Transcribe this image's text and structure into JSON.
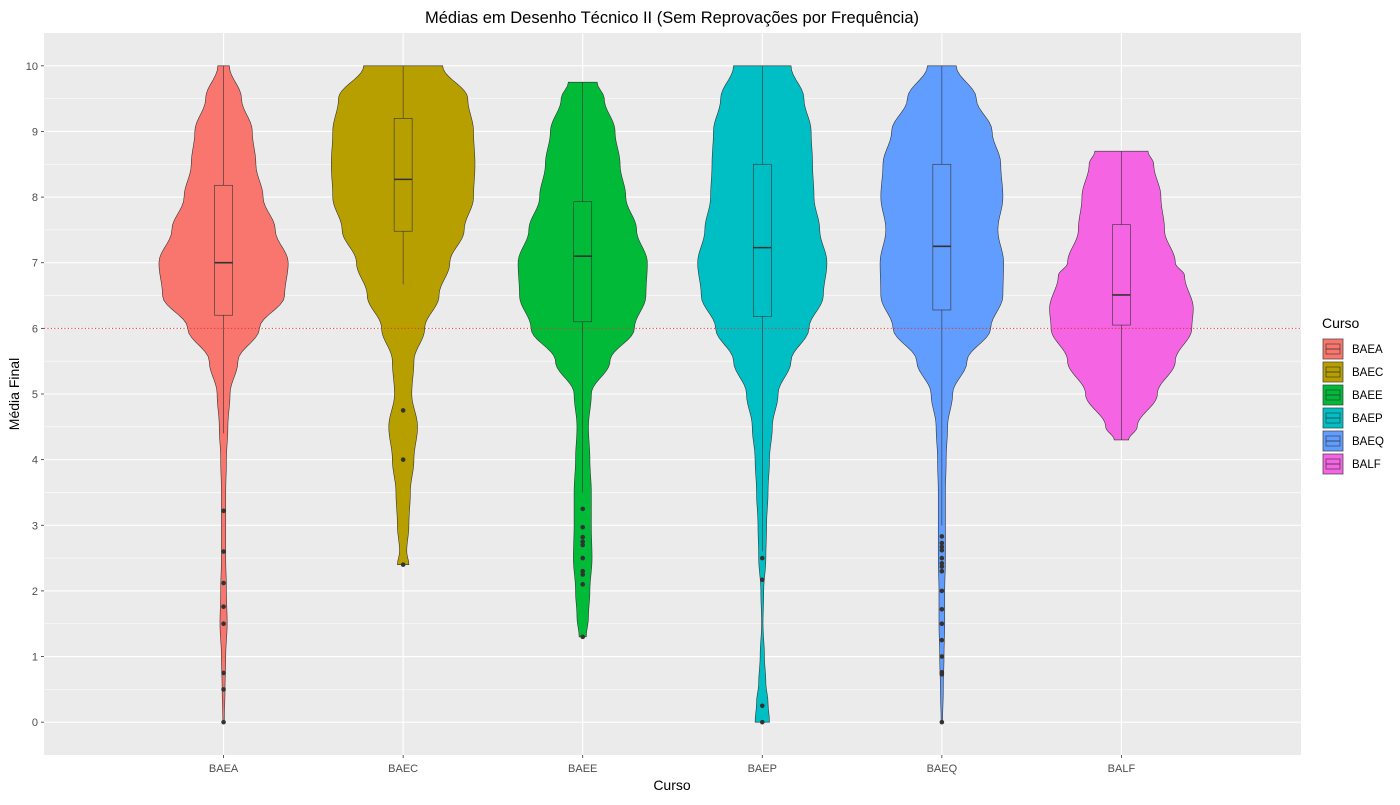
{
  "chart_data": {
    "type": "violin",
    "title": "Médias em Desenho Técnico II (Sem Reprovações por Frequência)",
    "xlabel": "Curso",
    "ylabel": "Média Final",
    "ylim": [
      -0.5,
      10.5
    ],
    "yticks": [
      "0",
      "1",
      "2",
      "3",
      "4",
      "5",
      "6",
      "7",
      "8",
      "9",
      "10"
    ],
    "grid": true,
    "reference_line": {
      "y": 6,
      "color": "#e8352a",
      "style": "dotted"
    },
    "categories": [
      "BAEA",
      "BAEC",
      "BAEE",
      "BAEP",
      "BAEQ",
      "BALF"
    ],
    "legend": {
      "title": "Curso",
      "position": "right"
    },
    "series": [
      {
        "name": "BAEA",
        "color": "#F8766D",
        "violin": {
          "min": 0,
          "max": 10,
          "profile": [
            [
              0,
              0.01
            ],
            [
              0.5,
              0.02
            ],
            [
              1,
              0.03
            ],
            [
              1.5,
              0.05
            ],
            [
              2,
              0.04
            ],
            [
              2.5,
              0.03
            ],
            [
              3,
              0.03
            ],
            [
              3.5,
              0.03
            ],
            [
              4,
              0.04
            ],
            [
              4.5,
              0.06
            ],
            [
              5,
              0.09
            ],
            [
              5.5,
              0.2
            ],
            [
              6,
              0.5
            ],
            [
              6.5,
              0.85
            ],
            [
              7,
              0.9
            ],
            [
              7.5,
              0.72
            ],
            [
              8,
              0.55
            ],
            [
              8.5,
              0.45
            ],
            [
              9,
              0.4
            ],
            [
              9.5,
              0.25
            ],
            [
              10,
              0.08
            ]
          ]
        },
        "box": {
          "q1": 6.2,
          "median": 7.0,
          "q3": 8.18,
          "whisker_low": 4.4,
          "whisker_high": 10
        },
        "outliers": [
          3.22,
          2.6,
          2.12,
          1.76,
          1.5,
          0.75,
          0.5,
          0
        ]
      },
      {
        "name": "BAEC",
        "color": "#B79F00",
        "violin": {
          "min": 2.4,
          "max": 10,
          "profile": [
            [
              2.4,
              0.08
            ],
            [
              2.6,
              0.05
            ],
            [
              3,
              0.08
            ],
            [
              3.5,
              0.1
            ],
            [
              4,
              0.15
            ],
            [
              4.5,
              0.2
            ],
            [
              5,
              0.12
            ],
            [
              5.5,
              0.15
            ],
            [
              6,
              0.3
            ],
            [
              6.5,
              0.5
            ],
            [
              7,
              0.65
            ],
            [
              7.5,
              0.85
            ],
            [
              8,
              0.98
            ],
            [
              8.5,
              1.0
            ],
            [
              9,
              0.98
            ],
            [
              9.5,
              0.9
            ],
            [
              10,
              0.55
            ]
          ]
        },
        "box": {
          "q1": 7.48,
          "median": 8.27,
          "q3": 9.2,
          "whisker_low": 6.67,
          "whisker_high": 10
        },
        "outliers": [
          4.75,
          4.0,
          2.4
        ]
      },
      {
        "name": "BAEE",
        "color": "#00BA38",
        "violin": {
          "min": 1.3,
          "max": 9.75,
          "profile": [
            [
              1.3,
              0.05
            ],
            [
              1.6,
              0.08
            ],
            [
              2,
              0.1
            ],
            [
              2.5,
              0.13
            ],
            [
              3,
              0.12
            ],
            [
              3.5,
              0.12
            ],
            [
              4,
              0.1
            ],
            [
              4.5,
              0.08
            ],
            [
              5,
              0.12
            ],
            [
              5.5,
              0.38
            ],
            [
              6,
              0.72
            ],
            [
              6.5,
              0.88
            ],
            [
              7,
              0.9
            ],
            [
              7.5,
              0.75
            ],
            [
              8,
              0.6
            ],
            [
              8.5,
              0.52
            ],
            [
              9,
              0.45
            ],
            [
              9.5,
              0.3
            ],
            [
              9.75,
              0.2
            ]
          ]
        },
        "box": {
          "q1": 6.1,
          "median": 7.1,
          "q3": 7.93,
          "whisker_low": 3.5,
          "whisker_high": 9.75
        },
        "outliers": [
          3.25,
          2.97,
          2.82,
          2.75,
          2.7,
          2.5,
          2.3,
          2.25,
          2.1,
          1.3
        ]
      },
      {
        "name": "BAEP",
        "color": "#00BFC4",
        "violin": {
          "min": 0,
          "max": 10,
          "profile": [
            [
              0,
              0.1
            ],
            [
              0.3,
              0.08
            ],
            [
              0.6,
              0.05
            ],
            [
              1,
              0.03
            ],
            [
              1.5,
              0.01
            ],
            [
              2,
              0.02
            ],
            [
              2.5,
              0.05
            ],
            [
              3,
              0.06
            ],
            [
              3.5,
              0.08
            ],
            [
              4,
              0.1
            ],
            [
              4.5,
              0.14
            ],
            [
              5,
              0.22
            ],
            [
              5.5,
              0.4
            ],
            [
              6,
              0.65
            ],
            [
              6.5,
              0.85
            ],
            [
              7,
              0.9
            ],
            [
              7.5,
              0.8
            ],
            [
              8,
              0.72
            ],
            [
              8.5,
              0.7
            ],
            [
              9,
              0.68
            ],
            [
              9.5,
              0.58
            ],
            [
              10,
              0.4
            ]
          ]
        },
        "box": {
          "q1": 6.18,
          "median": 7.23,
          "q3": 8.5,
          "whisker_low": 2.6,
          "whisker_high": 10
        },
        "outliers": [
          2.5,
          2.17,
          0.25,
          0
        ]
      },
      {
        "name": "BAEQ",
        "color": "#619CFF",
        "violin": {
          "min": 0,
          "max": 10,
          "profile": [
            [
              0,
              0.01
            ],
            [
              0.5,
              0.02
            ],
            [
              1,
              0.03
            ],
            [
              1.5,
              0.04
            ],
            [
              2,
              0.04
            ],
            [
              2.5,
              0.05
            ],
            [
              3,
              0.05
            ],
            [
              3.5,
              0.05
            ],
            [
              4,
              0.06
            ],
            [
              4.5,
              0.08
            ],
            [
              5,
              0.15
            ],
            [
              5.5,
              0.35
            ],
            [
              6,
              0.68
            ],
            [
              6.5,
              0.85
            ],
            [
              7,
              0.86
            ],
            [
              7.5,
              0.78
            ],
            [
              8,
              0.85
            ],
            [
              8.5,
              0.82
            ],
            [
              9,
              0.7
            ],
            [
              9.5,
              0.48
            ],
            [
              10,
              0.2
            ]
          ]
        },
        "box": {
          "q1": 6.28,
          "median": 7.25,
          "q3": 8.5,
          "whisker_low": 3.0,
          "whisker_high": 10
        },
        "outliers": [
          2.83,
          2.73,
          2.67,
          2.62,
          2.5,
          2.42,
          2.37,
          2.3,
          2.0,
          1.72,
          1.5,
          1.25,
          1.0,
          0.76,
          0.73,
          0
        ]
      },
      {
        "name": "BALF",
        "color": "#F564E3",
        "violin": {
          "min": 4.3,
          "max": 8.7,
          "profile": [
            [
              4.3,
              0.1
            ],
            [
              4.5,
              0.22
            ],
            [
              5,
              0.5
            ],
            [
              5.5,
              0.75
            ],
            [
              6,
              0.98
            ],
            [
              6.3,
              1.0
            ],
            [
              6.8,
              0.88
            ],
            [
              7,
              0.75
            ],
            [
              7.5,
              0.6
            ],
            [
              8,
              0.55
            ],
            [
              8.5,
              0.45
            ],
            [
              8.7,
              0.37
            ]
          ]
        },
        "box": {
          "q1": 6.05,
          "median": 6.51,
          "q3": 7.58,
          "whisker_low": 4.3,
          "whisker_high": 8.7
        },
        "outliers": []
      }
    ]
  }
}
